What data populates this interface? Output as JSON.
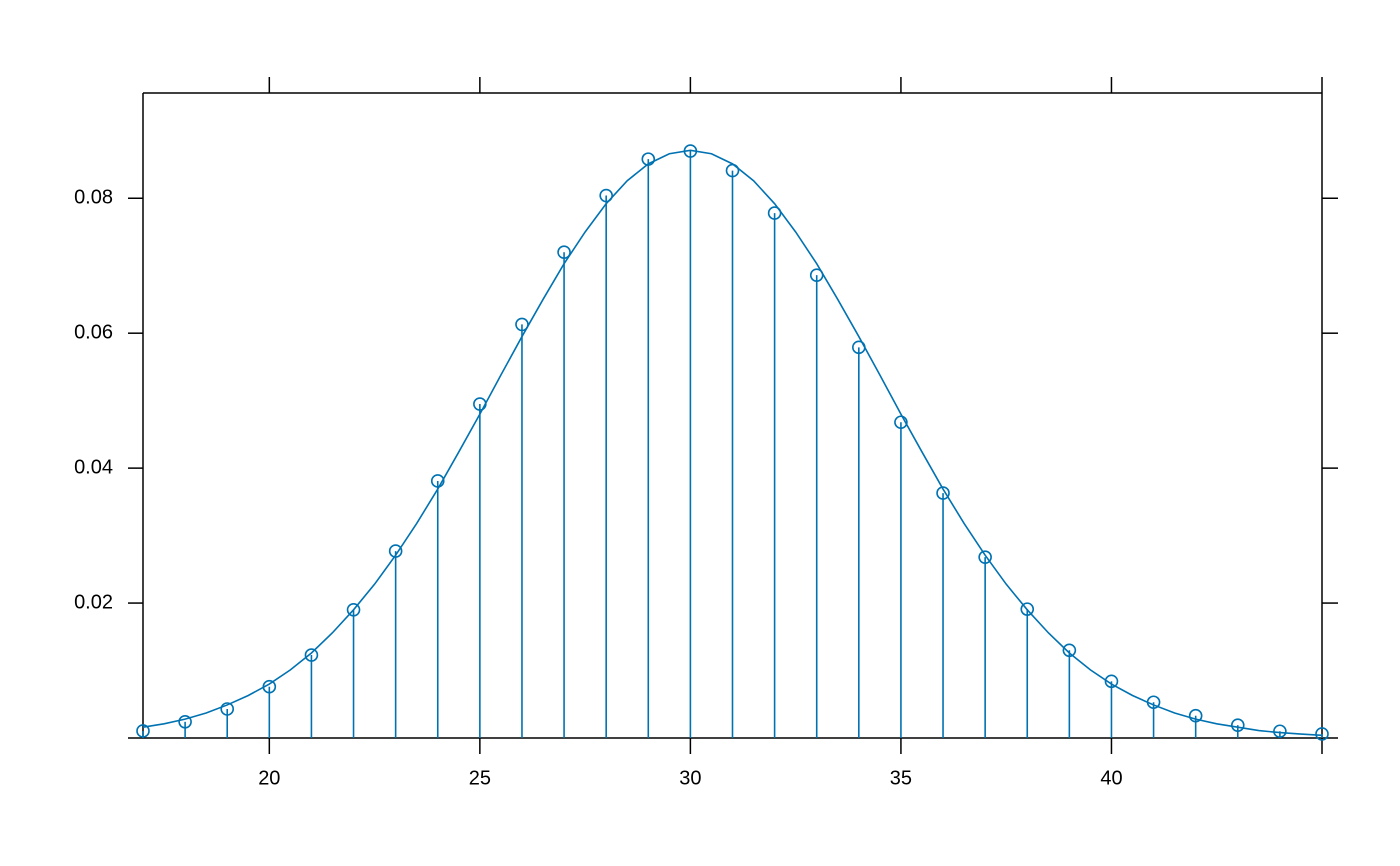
{
  "chart_data": {
    "type": "stem",
    "x": [
      17,
      18,
      19,
      20,
      21,
      22,
      23,
      24,
      25,
      26,
      27,
      28,
      29,
      30,
      31,
      32,
      33,
      34,
      35,
      36,
      37,
      38,
      39,
      40,
      41,
      42,
      43,
      44,
      45
    ],
    "values": [
      0.00104,
      0.0024,
      0.0043,
      0.0076,
      0.0123,
      0.019,
      0.0277,
      0.0381,
      0.0495,
      0.0613,
      0.072,
      0.0804,
      0.0858,
      0.087,
      0.0841,
      0.0778,
      0.0686,
      0.0579,
      0.0468,
      0.0363,
      0.0268,
      0.0191,
      0.013,
      0.0084,
      0.0053,
      0.0033,
      0.0019,
      0.001,
      0.0006
    ],
    "color": "#0072b2",
    "curve": {
      "x": [
        17,
        17.5,
        18,
        18.5,
        19,
        19.5,
        20,
        20.5,
        21,
        21.5,
        22,
        22.5,
        23,
        23.5,
        24,
        24.5,
        25,
        25.5,
        26,
        26.5,
        27,
        27.5,
        28,
        28.5,
        29,
        29.5,
        30,
        30.5,
        31,
        31.5,
        32,
        32.5,
        33,
        33.5,
        34,
        34.5,
        35,
        35.5,
        36,
        36.5,
        37,
        37.5,
        38,
        38.5,
        39,
        39.5,
        40,
        40.5,
        41,
        41.5,
        42,
        42.5,
        43,
        43.5,
        44,
        44.5,
        45
      ],
      "values": [
        0.0016,
        0.0021,
        0.0028,
        0.0037,
        0.0049,
        0.0063,
        0.008,
        0.0101,
        0.0126,
        0.0156,
        0.019,
        0.0228,
        0.0271,
        0.0318,
        0.0369,
        0.0424,
        0.048,
        0.0538,
        0.0595,
        0.065,
        0.0703,
        0.075,
        0.0792,
        0.0826,
        0.0851,
        0.0866,
        0.0871,
        0.0866,
        0.0851,
        0.0826,
        0.0792,
        0.075,
        0.0703,
        0.065,
        0.0595,
        0.0538,
        0.048,
        0.0424,
        0.0369,
        0.0318,
        0.0271,
        0.0228,
        0.019,
        0.0156,
        0.0126,
        0.0101,
        0.008,
        0.0063,
        0.0049,
        0.0037,
        0.0028,
        0.0021,
        0.0016,
        0.0011,
        0.0008,
        0.00058,
        0.0004
      ]
    },
    "xlim": [
      17,
      45
    ],
    "ylim": [
      0,
      0.0956
    ],
    "xticks": [
      20,
      25,
      30,
      35,
      40
    ],
    "yticks": [
      0.02,
      0.04,
      0.06,
      0.08
    ]
  }
}
